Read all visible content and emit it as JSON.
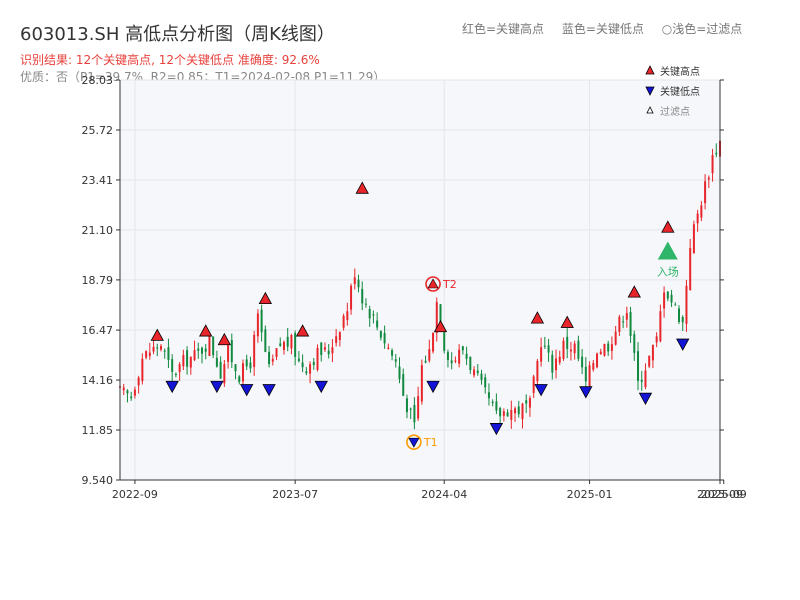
{
  "title": "603013.SH 高低点分析图（周K线图）",
  "header_legend": {
    "red": "红色=关键高点",
    "blue": "蓝色=关键低点",
    "light": "○浅色=过滤点"
  },
  "result_line": "识别结果: 12个关键高点, 12个关键低点  准确度: 92.6%",
  "quality_line": "优质：否（P1=39.7%, R2=0.85；T1=2024-02-08 P1=11.29）",
  "legend": {
    "high": "关键高点",
    "low": "关键低点",
    "filtered": "过滤点"
  },
  "colors": {
    "up": "#e8252a",
    "down": "#11893f",
    "high_marker": "#e8252a",
    "low_marker": "#1414d6",
    "t_marker": "#ff9900",
    "entry": "#2fb56a",
    "plot_bg": "#f5f7fa"
  },
  "chart_data": {
    "type": "candlestick",
    "x_axis": {
      "min": "2022-08-05",
      "max": "2025-09-05",
      "ticks": [
        "2022-09",
        "2023-07",
        "2024-04",
        "2025-01",
        "2025-09",
        "2025-09"
      ]
    },
    "y_axis": {
      "min": 9.54,
      "max": 28.03,
      "ticks": [
        9.54,
        11.85,
        14.16,
        16.47,
        18.79,
        21.1,
        23.41,
        25.72,
        28.03
      ]
    },
    "grid": true,
    "legend_position": "top-right",
    "weekly_close_outline": [
      [
        "2022-08-05",
        13.6
      ],
      [
        "2022-08-26",
        13.4
      ],
      [
        "2022-09-16",
        15.2
      ],
      [
        "2022-09-30",
        15.5
      ],
      [
        "2022-10-21",
        15.8
      ],
      [
        "2022-11-11",
        14.4
      ],
      [
        "2022-12-02",
        15.0
      ],
      [
        "2022-12-30",
        15.4
      ],
      [
        "2023-01-20",
        16.0
      ],
      [
        "2023-02-10",
        14.5
      ],
      [
        "2023-02-24",
        15.5
      ],
      [
        "2023-03-17",
        14.4
      ],
      [
        "2023-04-07",
        15.0
      ],
      [
        "2023-04-21",
        17.0
      ],
      [
        "2023-05-12",
        14.6
      ],
      [
        "2023-06-02",
        15.8
      ],
      [
        "2023-06-23",
        15.9
      ],
      [
        "2023-07-07",
        15.0
      ],
      [
        "2023-07-21",
        14.8
      ],
      [
        "2023-08-11",
        15.4
      ],
      [
        "2023-09-01",
        15.5
      ],
      [
        "2023-09-22",
        16.7
      ],
      [
        "2023-10-06",
        17.5
      ],
      [
        "2023-10-20",
        19.2
      ],
      [
        "2023-11-03",
        18.0
      ],
      [
        "2023-11-24",
        17.0
      ],
      [
        "2023-12-15",
        16.0
      ],
      [
        "2024-01-05",
        15.0
      ],
      [
        "2024-01-19",
        13.5
      ],
      [
        "2024-02-09",
        12.0
      ],
      [
        "2024-02-23",
        14.8
      ],
      [
        "2024-03-08",
        15.5
      ],
      [
        "2024-03-22",
        17.8
      ],
      [
        "2024-04-05",
        15.8
      ],
      [
        "2024-04-19",
        15.0
      ],
      [
        "2024-05-10",
        15.6
      ],
      [
        "2024-05-31",
        14.5
      ],
      [
        "2024-06-21",
        13.5
      ],
      [
        "2024-07-12",
        12.5
      ],
      [
        "2024-08-02",
        12.8
      ],
      [
        "2024-08-23",
        12.8
      ],
      [
        "2024-09-13",
        13.0
      ],
      [
        "2024-10-04",
        16.0
      ],
      [
        "2024-10-25",
        14.8
      ],
      [
        "2024-11-15",
        15.8
      ],
      [
        "2024-12-06",
        15.7
      ],
      [
        "2024-12-27",
        14.0
      ],
      [
        "2025-01-17",
        15.6
      ],
      [
        "2025-02-07",
        15.8
      ],
      [
        "2025-02-21",
        16.5
      ],
      [
        "2025-03-14",
        17.5
      ],
      [
        "2025-04-04",
        14.0
      ],
      [
        "2025-04-18",
        14.8
      ],
      [
        "2025-05-09",
        16.0
      ],
      [
        "2025-05-23",
        18.5
      ],
      [
        "2025-06-13",
        17.5
      ],
      [
        "2025-06-27",
        16.8
      ],
      [
        "2025-07-11",
        20.5
      ],
      [
        "2025-08-01",
        22.5
      ],
      [
        "2025-08-22",
        24.5
      ],
      [
        "2025-09-05",
        25.2
      ]
    ],
    "key_highs": [
      [
        "2022-10-14",
        15.9
      ],
      [
        "2023-01-13",
        16.1
      ],
      [
        "2023-02-17",
        15.7
      ],
      [
        "2023-05-05",
        17.6
      ],
      [
        "2023-07-14",
        16.1
      ],
      [
        "2023-11-03",
        22.7
      ],
      [
        "2024-03-29",
        16.3
      ],
      [
        "2024-09-27",
        16.7
      ],
      [
        "2024-11-22",
        16.5
      ],
      [
        "2025-03-28",
        17.9
      ],
      [
        "2025-05-30",
        20.9
      ]
    ],
    "key_lows": [
      [
        "2022-11-11",
        14.15
      ],
      [
        "2023-02-03",
        14.15
      ],
      [
        "2023-03-31",
        14.0
      ],
      [
        "2023-05-12",
        14.0
      ],
      [
        "2023-08-18",
        14.15
      ],
      [
        "2024-03-15",
        14.15
      ],
      [
        "2024-07-12",
        12.2
      ],
      [
        "2024-10-04",
        14.0
      ],
      [
        "2024-12-27",
        13.9
      ],
      [
        "2025-04-18",
        13.6
      ],
      [
        "2025-06-27",
        16.1
      ]
    ],
    "turning_points": [
      {
        "label": "T1",
        "date": "2024-02-08",
        "value": 11.29,
        "kind": "low"
      },
      {
        "label": "T2",
        "date": "2024-03-15",
        "value": 18.6,
        "kind": "high"
      }
    ],
    "entry_point": {
      "label": "入场",
      "date": "2025-05-30",
      "value": 20.1
    }
  }
}
